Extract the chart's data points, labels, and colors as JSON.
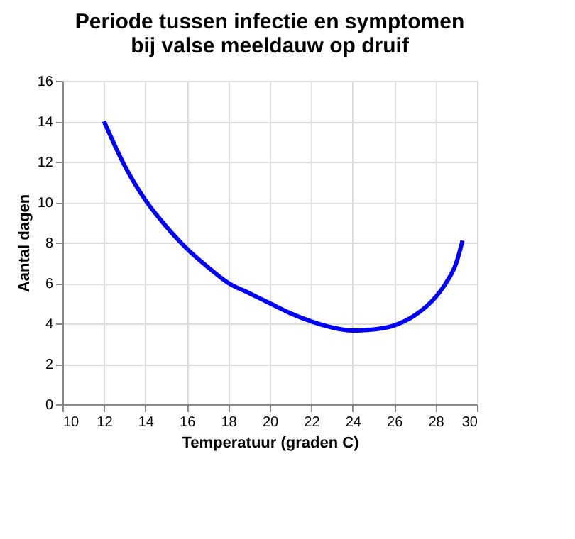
{
  "chart_data": {
    "type": "line",
    "title": "Periode tussen infectie en symptomen\nbij valse meeldauw op druif",
    "xlabel": "Temperatuur (graden C)",
    "ylabel": "Aantal dagen",
    "x": [
      12,
      13,
      14,
      15,
      16,
      17,
      18,
      19,
      20,
      21,
      22,
      23,
      24,
      25,
      26,
      27,
      28,
      28.5,
      29,
      29.3
    ],
    "series": [
      {
        "color": "#0000ff",
        "values": [
          14,
          11.8,
          10.1,
          8.8,
          7.7,
          6.8,
          6.0,
          5.5,
          5.0,
          4.5,
          4.1,
          3.8,
          3.65,
          3.7,
          3.9,
          4.4,
          5.3,
          6.0,
          7.0,
          8.1
        ]
      }
    ],
    "xlim": [
      10,
      30
    ],
    "xticks": [
      10,
      12,
      14,
      16,
      18,
      20,
      22,
      24,
      26,
      28,
      30
    ],
    "ylim": [
      0,
      16
    ],
    "yticks": [
      0,
      2,
      4,
      6,
      8,
      10,
      12,
      14,
      16
    ],
    "grid": true,
    "marker": "none",
    "line_style": "solid"
  }
}
